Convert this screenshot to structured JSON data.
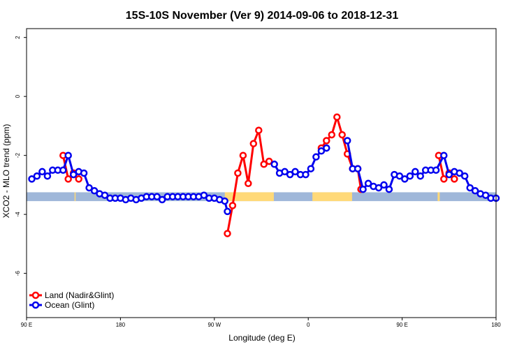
{
  "chart_data": {
    "type": "line",
    "title": "15S-10S November (Ver 9)   2014-09-06 to 2018-12-31",
    "xlabel": "Longitude (deg E)",
    "ylabel": "XCO2 - MLO trend (ppm)",
    "xlim": [
      90,
      450
    ],
    "ylim": [
      -7.5,
      2.3
    ],
    "x_ticks": [
      {
        "value": 90,
        "label": "90 E"
      },
      {
        "value": 180,
        "label": "180"
      },
      {
        "value": 270,
        "label": "90 W"
      },
      {
        "value": 360,
        "label": "0"
      },
      {
        "value": 450,
        "label": "90 E"
      },
      {
        "value": 540,
        "label": "180"
      }
    ],
    "y_ticks": [
      {
        "value": 2,
        "label": "2"
      },
      {
        "value": 0,
        "label": "0"
      },
      {
        "value": -2,
        "label": "-2"
      },
      {
        "value": -4,
        "label": "-4"
      },
      {
        "value": -6,
        "label": "-6"
      }
    ],
    "x_scale": {
      "domain": [
        90,
        540
      ]
    },
    "grid": false,
    "legend_position": "bottom-left",
    "series": [
      {
        "name": "Land (Nadir&Glint)",
        "color": "#ff0000",
        "points": [
          [
            125,
            -2.0
          ],
          [
            130,
            -2.8
          ],
          [
            135,
            -2.6
          ],
          [
            140,
            -2.8
          ],
          [
            282.5,
            -4.65
          ],
          [
            287.5,
            -3.7
          ],
          [
            292.5,
            -2.6
          ],
          [
            297.5,
            -2.0
          ],
          [
            302.5,
            -2.95
          ],
          [
            307.5,
            -1.6
          ],
          [
            312.5,
            -1.15
          ],
          [
            317.5,
            -2.3
          ],
          [
            322.5,
            -2.2
          ],
          [
            372.5,
            -1.75
          ],
          [
            377.5,
            -1.5
          ],
          [
            382.5,
            -1.3
          ],
          [
            387.5,
            -0.7
          ],
          [
            392.5,
            -1.3
          ],
          [
            397.5,
            -1.95
          ],
          [
            402.5,
            -2.45
          ],
          [
            407.5,
            -2.45
          ],
          [
            410.5,
            -3.15
          ],
          [
            485,
            -2.0
          ],
          [
            490,
            -2.8
          ],
          [
            495,
            -2.6
          ],
          [
            500,
            -2.8
          ]
        ]
      },
      {
        "name": "Ocean (Glint)",
        "color": "#0000ee",
        "points": [
          [
            95,
            -2.8
          ],
          [
            100,
            -2.7
          ],
          [
            105,
            -2.55
          ],
          [
            110,
            -2.7
          ],
          [
            115,
            -2.5
          ],
          [
            120,
            -2.5
          ],
          [
            125,
            -2.5
          ],
          [
            130,
            -2.0
          ],
          [
            135,
            -2.65
          ],
          [
            140,
            -2.55
          ],
          [
            145,
            -2.6
          ],
          [
            150,
            -3.1
          ],
          [
            155,
            -3.2
          ],
          [
            160,
            -3.3
          ],
          [
            165,
            -3.35
          ],
          [
            170,
            -3.45
          ],
          [
            175,
            -3.45
          ],
          [
            180,
            -3.45
          ],
          [
            185,
            -3.5
          ],
          [
            190,
            -3.45
          ],
          [
            195,
            -3.5
          ],
          [
            200,
            -3.45
          ],
          [
            205,
            -3.4
          ],
          [
            210,
            -3.4
          ],
          [
            215,
            -3.4
          ],
          [
            220,
            -3.5
          ],
          [
            225,
            -3.4
          ],
          [
            230,
            -3.4
          ],
          [
            235,
            -3.4
          ],
          [
            240,
            -3.4
          ],
          [
            245,
            -3.4
          ],
          [
            250,
            -3.4
          ],
          [
            255,
            -3.4
          ],
          [
            260,
            -3.35
          ],
          [
            265,
            -3.45
          ],
          [
            270,
            -3.45
          ],
          [
            275,
            -3.5
          ],
          [
            280,
            -3.55
          ],
          [
            282.5,
            -3.9
          ],
          [
            327.5,
            -2.3
          ],
          [
            332.5,
            -2.6
          ],
          [
            337.5,
            -2.55
          ],
          [
            342.5,
            -2.65
          ],
          [
            347.5,
            -2.55
          ],
          [
            352.5,
            -2.65
          ],
          [
            357.5,
            -2.65
          ],
          [
            362.5,
            -2.45
          ],
          [
            367.5,
            -2.05
          ],
          [
            372.5,
            -1.85
          ],
          [
            377.5,
            -1.75
          ],
          [
            397.5,
            -1.5
          ],
          [
            402.5,
            -2.45
          ],
          [
            407.5,
            -2.45
          ],
          [
            412.5,
            -3.15
          ],
          [
            417.5,
            -2.95
          ],
          [
            422.5,
            -3.05
          ],
          [
            427.5,
            -3.1
          ],
          [
            432.5,
            -3.0
          ],
          [
            437.5,
            -3.15
          ],
          [
            442.5,
            -2.65
          ],
          [
            447.5,
            -2.7
          ],
          [
            452.5,
            -2.8
          ],
          [
            457.5,
            -2.7
          ],
          [
            462.5,
            -2.55
          ],
          [
            467.5,
            -2.7
          ],
          [
            472.5,
            -2.5
          ],
          [
            477.5,
            -2.5
          ],
          [
            482.5,
            -2.5
          ],
          [
            490,
            -2.0
          ],
          [
            495,
            -2.65
          ],
          [
            500,
            -2.55
          ],
          [
            505,
            -2.6
          ],
          [
            510,
            -2.7
          ],
          [
            515,
            -3.1
          ],
          [
            520,
            -3.2
          ],
          [
            525,
            -3.3
          ],
          [
            530,
            -3.35
          ],
          [
            535,
            -3.45
          ],
          [
            540,
            -3.45
          ]
        ]
      }
    ],
    "surface_strip": {
      "y_range": [
        -3.55,
        -3.25
      ],
      "ocean_color": "#9fb7d9",
      "land_color": "#ffd978",
      "land_segments": [
        [
          280,
          327
        ],
        [
          364,
          402
        ],
        [
          484,
          486
        ],
        [
          136,
          137
        ]
      ]
    }
  }
}
